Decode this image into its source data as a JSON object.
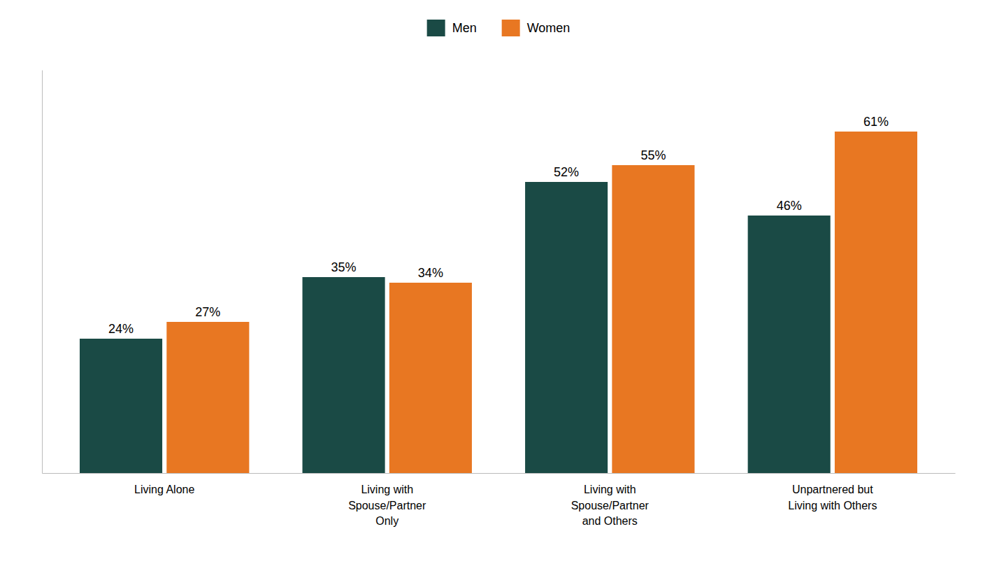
{
  "chart_data": {
    "type": "bar",
    "categories": [
      "Living Alone",
      "Living with\nSpouse/Partner\nOnly",
      "Living with\nSpouse/Partner\nand Others",
      "Unpartnered but\nLiving with Others"
    ],
    "series": [
      {
        "name": "Men",
        "color": "#1a4a45",
        "values": [
          24,
          35,
          52,
          46
        ],
        "value_labels": [
          "24%",
          "35%",
          "52%",
          "46%"
        ]
      },
      {
        "name": "Women",
        "color": "#e87722",
        "values": [
          27,
          34,
          55,
          61
        ],
        "value_labels": [
          "27%",
          "34%",
          "55%",
          "61%"
        ]
      }
    ],
    "ylim": [
      0,
      72
    ],
    "data_labels": true,
    "tick_labels": "x",
    "legend": "upper center",
    "grid": false
  }
}
